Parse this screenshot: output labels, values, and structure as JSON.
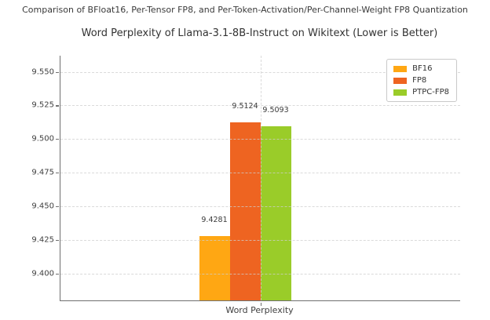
{
  "chart_data": {
    "type": "bar",
    "suptitle": "Comparison of BFloat16, Per-Tensor FP8, and Per-Token-Activation/Per-Channel-Weight FP8 Quantization",
    "title": "Word Perplexity of Llama-3.1-8B-Instruct on Wikitext (Lower is Better)",
    "categories": [
      "Word Perplexity"
    ],
    "series": [
      {
        "name": "BF16",
        "color": "#FFA713",
        "values": [
          9.4281
        ],
        "label": "9.4281"
      },
      {
        "name": "FP8",
        "color": "#EE6421",
        "values": [
          9.5124
        ],
        "label": "9.5124"
      },
      {
        "name": "PTPC-FP8",
        "color": "#9ACC29",
        "values": [
          9.5093
        ],
        "label": "9.5093"
      }
    ],
    "ylim": [
      9.38,
      9.562
    ],
    "yticks": [
      "9.400",
      "9.425",
      "9.450",
      "9.475",
      "9.500",
      "9.525",
      "9.550"
    ],
    "grid": "dashed-horizontal-and-category-vertical",
    "legend_position": "upper right",
    "note": "lower is better"
  }
}
